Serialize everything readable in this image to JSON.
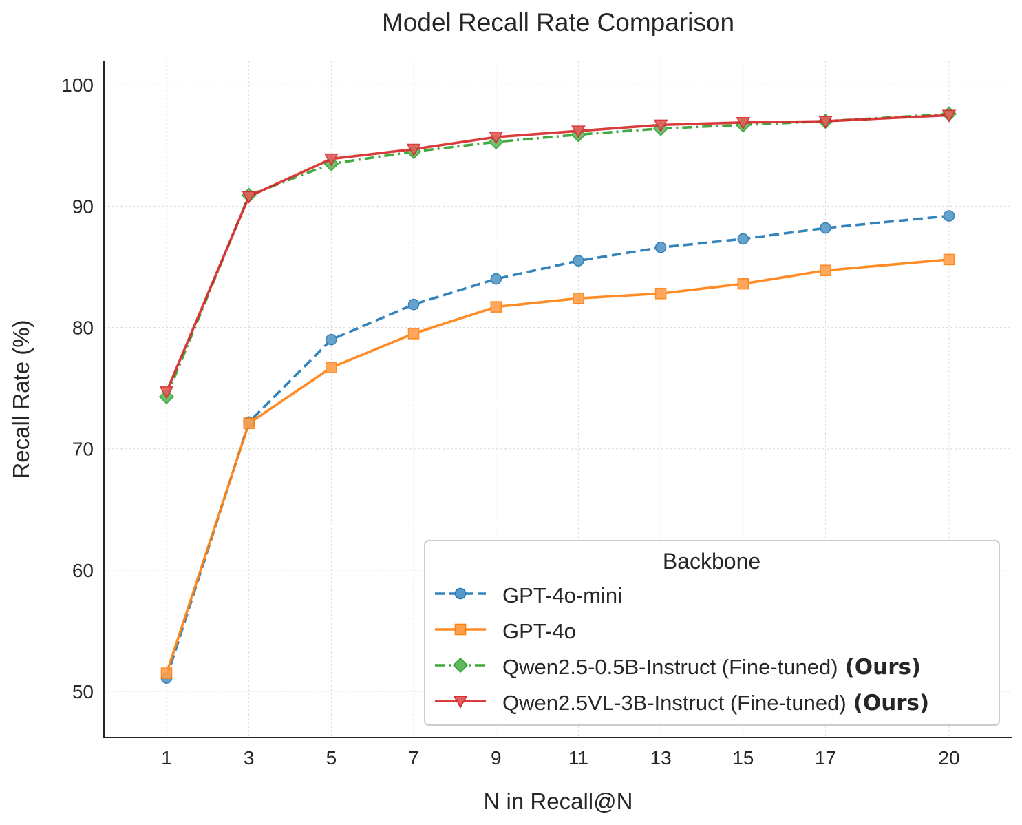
{
  "chart_data": {
    "type": "line",
    "title": "Model Recall Rate Comparison",
    "xlabel": "N in Recall@N",
    "ylabel": "Recall Rate (%)",
    "x": [
      1,
      3,
      5,
      7,
      9,
      11,
      13,
      15,
      17,
      20
    ],
    "x_tick_labels": [
      "1",
      "3",
      "5",
      "7",
      "9",
      "11",
      "13",
      "15",
      "17",
      "20"
    ],
    "y_ticks": [
      50,
      60,
      70,
      80,
      90,
      100
    ],
    "y_tick_labels": [
      "50",
      "60",
      "70",
      "80",
      "90",
      "100"
    ],
    "ylim": [
      46.2,
      102.0
    ],
    "grid": true,
    "legend": {
      "title": "Backbone",
      "position": "lower-right"
    },
    "series": [
      {
        "name": "GPT-4o-mini",
        "suffix": "",
        "color": "#1f77b4",
        "linestyle": "dashed",
        "marker": "circle",
        "values": [
          51.1,
          72.2,
          79.0,
          81.9,
          84.0,
          85.5,
          86.6,
          87.3,
          88.2,
          89.2
        ]
      },
      {
        "name": "GPT-4o",
        "suffix": "",
        "color": "#ff7f0e",
        "linestyle": "solid",
        "marker": "square",
        "values": [
          51.5,
          72.1,
          76.7,
          79.5,
          81.7,
          82.4,
          82.8,
          83.6,
          84.7,
          85.6
        ]
      },
      {
        "name": "Qwen2.5-0.5B-Instruct (Fine-tuned)",
        "suffix": "(Ours)",
        "color": "#2ca02c",
        "linestyle": "dashdot",
        "marker": "diamond",
        "values": [
          74.3,
          90.9,
          93.5,
          94.5,
          95.3,
          95.9,
          96.4,
          96.7,
          97.0,
          97.6
        ]
      },
      {
        "name": "Qwen2.5VL-3B-Instruct (Fine-tuned)",
        "suffix": "(Ours)",
        "color": "#d62728",
        "linestyle": "solid",
        "marker": "triangle-down",
        "values": [
          74.7,
          90.8,
          93.9,
          94.7,
          95.7,
          96.2,
          96.7,
          96.9,
          97.0,
          97.5
        ]
      }
    ]
  }
}
